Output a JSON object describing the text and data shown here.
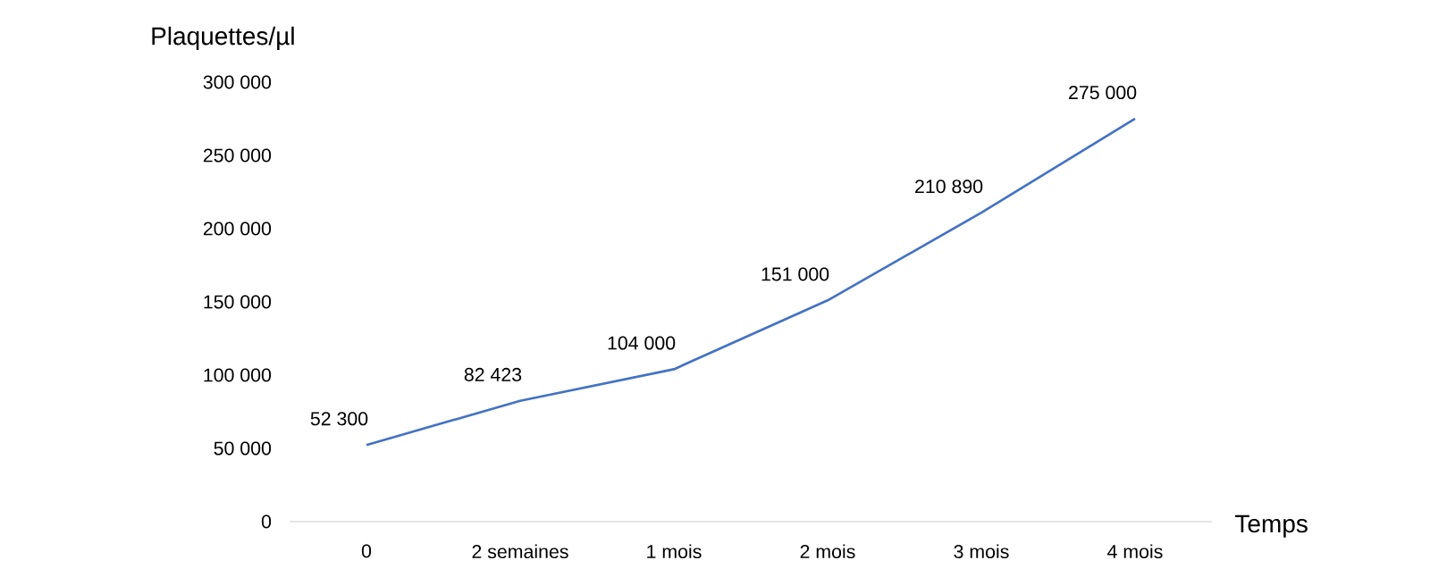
{
  "chart_data": {
    "type": "line",
    "xlabel": "Temps",
    "ylabel": "Plaquettes/µl",
    "categories": [
      "0",
      "2 semaines",
      "1 mois",
      "2 mois",
      "3 mois",
      "4 mois"
    ],
    "series": [
      {
        "color": "#4472c4",
        "values": [
          52300,
          82423,
          104000,
          151000,
          210890,
          275000
        ],
        "value_labels": [
          "52 300",
          "82 423",
          "104 000",
          "151 000",
          "210 890",
          "275 000"
        ]
      }
    ],
    "ylim": [
      0,
      300000
    ],
    "yticks": [
      0,
      {
        "value": 50000,
        "label": "50 000"
      },
      {
        "value": 100000,
        "label": "100 000"
      },
      {
        "value": 150000,
        "label": "150 000"
      },
      {
        "value": 200000,
        "label": "200 000"
      },
      {
        "value": 250000,
        "label": "250 000"
      },
      {
        "value": 300000,
        "label": "300 000"
      }
    ],
    "marker": "none",
    "line_style": "solid"
  }
}
